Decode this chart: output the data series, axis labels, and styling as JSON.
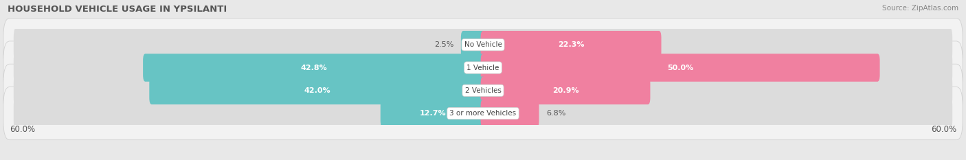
{
  "title": "HOUSEHOLD VEHICLE USAGE IN YPSILANTI",
  "source": "Source: ZipAtlas.com",
  "categories": [
    "No Vehicle",
    "1 Vehicle",
    "2 Vehicles",
    "3 or more Vehicles"
  ],
  "owner_values": [
    2.5,
    42.8,
    42.0,
    12.7
  ],
  "renter_values": [
    22.3,
    50.0,
    20.9,
    6.8
  ],
  "owner_color": "#67c4c4",
  "renter_color": "#f080a0",
  "axis_limit": 60.0,
  "background_color": "#e8e8e8",
  "row_bg_color": "#f2f2f2",
  "bar_inner_bg": "#dcdcdc",
  "title_fontsize": 9.5,
  "source_fontsize": 7.5,
  "label_fontsize": 8,
  "cat_fontsize": 7.5,
  "tick_fontsize": 8.5,
  "legend_fontsize": 8.5,
  "white_label_threshold": 10
}
